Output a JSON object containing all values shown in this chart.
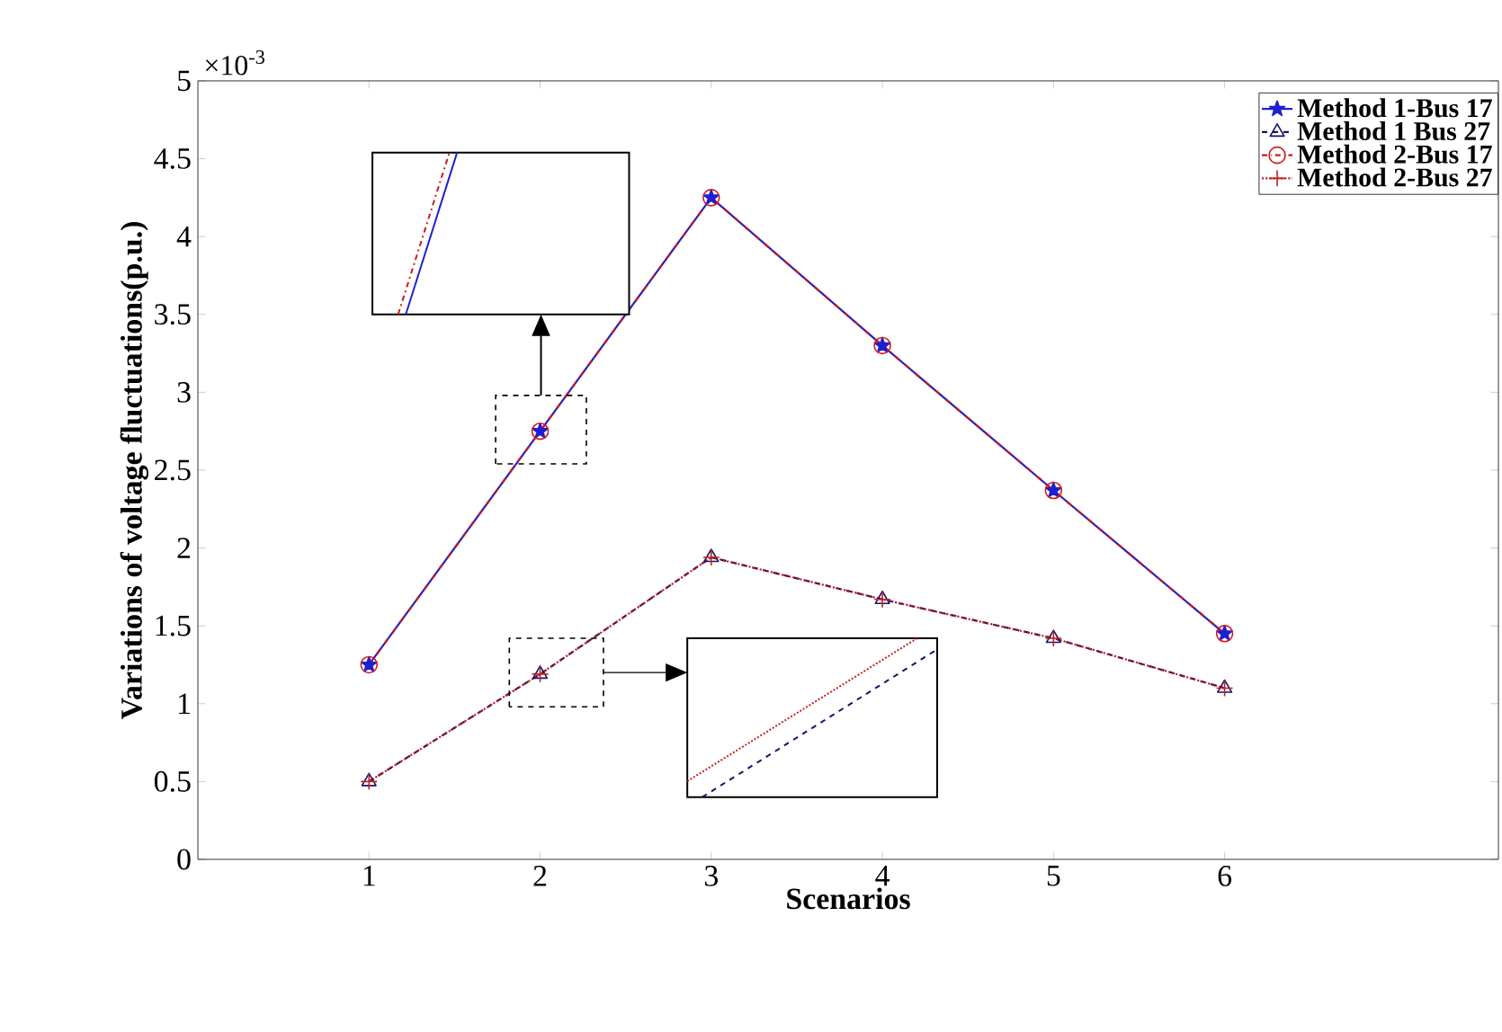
{
  "chart_data": {
    "type": "line",
    "xlabel": "Scenarios",
    "ylabel": "Variations of voltage  fluctuations(p.u.)",
    "annotations": [
      "×10$^{-3}$"
    ],
    "x": [
      1,
      2,
      3,
      4,
      5,
      6
    ],
    "xlim": [
      0,
      7.6
    ],
    "xticks": [
      1,
      2,
      3,
      4,
      5,
      6
    ],
    "ylim": [
      0,
      5
    ],
    "yticks": [
      0,
      0.5,
      1,
      1.5,
      2,
      2.5,
      3,
      3.5,
      4,
      4.5,
      5
    ],
    "legend": "top right",
    "grid": false,
    "series": [
      {
        "name": "Method 1-Bus 17",
        "color": "#1f1fd0",
        "marker": "star",
        "line_style": "solid",
        "values": [
          1.25,
          2.75,
          4.25,
          3.3,
          2.37,
          1.45
        ]
      },
      {
        "name": "Method 1 Bus 27",
        "color": "#141466",
        "marker": "triangle",
        "line_style": "dashed",
        "values": [
          0.5,
          1.19,
          1.94,
          1.67,
          1.42,
          1.1
        ]
      },
      {
        "name": "Method 2-Bus 17",
        "color": "#d01818",
        "marker": "circle",
        "line_style": "dashdot",
        "values": [
          1.25,
          2.75,
          4.25,
          3.3,
          2.37,
          1.45
        ]
      },
      {
        "name": "Method 2-Bus 27",
        "color": "#c02020",
        "marker": "cross",
        "line_style": "dotted",
        "values": [
          0.5,
          1.19,
          1.94,
          1.67,
          1.42,
          1.1
        ]
      }
    ]
  }
}
